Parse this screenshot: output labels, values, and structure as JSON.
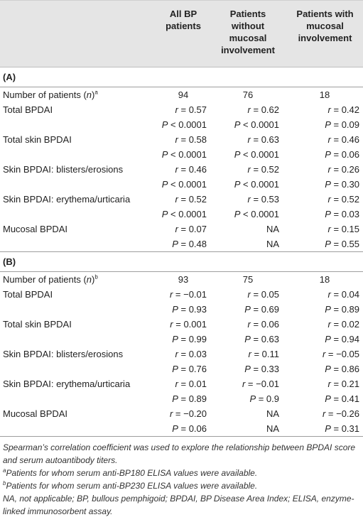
{
  "columns": {
    "c1": "All BP patients",
    "c2": "Patients without mucosal involvement",
    "c3": "Patients with mucosal involvement"
  },
  "section_a": {
    "label": "(A)",
    "n_row": {
      "label": "Number of patients (n)",
      "sup": "a",
      "c1": "94",
      "c2": "76",
      "c3": "18"
    },
    "rows": [
      {
        "label": "Total BPDAI",
        "r": [
          "r = 0.57",
          "r = 0.62",
          "r = 0.42"
        ],
        "p": [
          "P < 0.0001",
          "P < 0.0001",
          "P = 0.09"
        ]
      },
      {
        "label": "Total skin BPDAI",
        "r": [
          "r = 0.58",
          "r = 0.63",
          "r = 0.46"
        ],
        "p": [
          "P < 0.0001",
          "P < 0.0001",
          "P = 0.06"
        ]
      },
      {
        "label": "Skin BPDAI: blisters/erosions",
        "r": [
          "r = 0.46",
          "r = 0.52",
          "r = 0.26"
        ],
        "p": [
          "P < 0.0001",
          "P < 0.0001",
          "P = 0.30"
        ]
      },
      {
        "label": "Skin BPDAI: erythema/urticaria",
        "r": [
          "r = 0.52",
          "r = 0.53",
          "r = 0.52"
        ],
        "p": [
          "P < 0.0001",
          "P < 0.0001",
          "P = 0.03"
        ]
      },
      {
        "label": "Mucosal BPDAI",
        "r": [
          "r = 0.07",
          "NA",
          "r = 0.15"
        ],
        "p": [
          "P = 0.48",
          "NA",
          "P = 0.55"
        ]
      }
    ]
  },
  "section_b": {
    "label": "(B)",
    "n_row": {
      "label": "Number of patients (n)",
      "sup": "b",
      "c1": "93",
      "c2": "75",
      "c3": "18"
    },
    "rows": [
      {
        "label": "Total BPDAI",
        "r": [
          "r = −0.01",
          "r = 0.05",
          "r = 0.04"
        ],
        "p": [
          "P = 0.93",
          "P = 0.69",
          "P = 0.89"
        ]
      },
      {
        "label": "Total skin BPDAI",
        "r": [
          "r = 0.001",
          "r = 0.06",
          "r = 0.02"
        ],
        "p": [
          "P = 0.99",
          "P = 0.63",
          "P = 0.94"
        ]
      },
      {
        "label": "Skin BPDAI: blisters/erosions",
        "r": [
          "r = 0.03",
          "r = 0.11",
          "r = −0.05"
        ],
        "p": [
          "P = 0.76",
          "P = 0.33",
          "P = 0.86"
        ]
      },
      {
        "label": "Skin BPDAI: erythema/urticaria",
        "r": [
          "r = 0.01",
          "r = −0.01",
          "r = 0.21"
        ],
        "p": [
          "P = 0.89",
          "P = 0.9",
          "P = 0.41"
        ]
      },
      {
        "label": "Mucosal BPDAI",
        "r": [
          "r = −0.20",
          "NA",
          "r = −0.26"
        ],
        "p": [
          "P = 0.06",
          "NA",
          "P = 0.31"
        ]
      }
    ]
  },
  "footnotes": {
    "main": "Spearman’s correlation coefficient was used to explore the relationship between BPDAI score and serum autoantibody titers.",
    "a_sup": "a",
    "a": "Patients for whom serum anti-BP180 ELISA values were available.",
    "b_sup": "b",
    "b": "Patients for whom serum anti-BP230 ELISA values were available.",
    "abbrev": "NA, not applicable; BP, bullous pemphigoid; BPDAI, BP Disease Area Index; ELISA, enzyme-linked immunosorbent assay."
  }
}
